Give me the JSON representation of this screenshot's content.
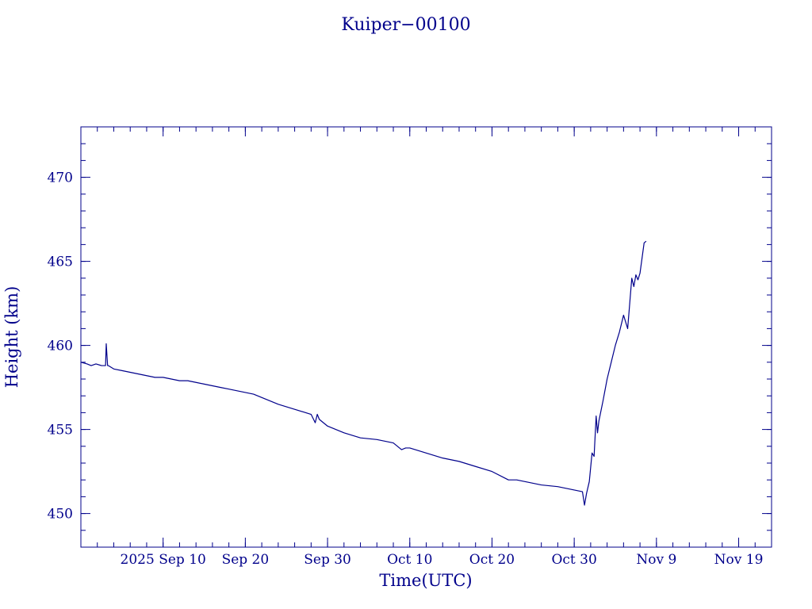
{
  "chart_data": {
    "type": "line",
    "title": "Kuiper−00100",
    "xlabel": "Time(UTC)",
    "ylabel": "Height (km)",
    "color": "#00008b",
    "grid": false,
    "xlim": [
      "2025-08-31",
      "2025-11-23"
    ],
    "ylim": [
      448,
      473
    ],
    "x_ticks": [
      {
        "date": "2025-09-10",
        "label": "2025 Sep 10"
      },
      {
        "date": "2025-09-20",
        "label": "Sep 20"
      },
      {
        "date": "2025-09-30",
        "label": "Sep 30"
      },
      {
        "date": "2025-10-10",
        "label": "Oct 10"
      },
      {
        "date": "2025-10-20",
        "label": "Oct 20"
      },
      {
        "date": "2025-10-30",
        "label": "Oct 30"
      },
      {
        "date": "2025-11-09",
        "label": "Nov  9"
      },
      {
        "date": "2025-11-19",
        "label": "Nov 19"
      }
    ],
    "y_ticks": [
      450,
      455,
      460,
      465,
      470
    ],
    "series": [
      {
        "x": [
          "2025-08-31T00:00",
          "2025-08-31T18:00",
          "2025-09-01T06:00",
          "2025-09-01T20:00",
          "2025-09-02T12:00",
          "2025-09-03T00:00",
          "2025-09-03T02:00",
          "2025-09-03T06:00",
          "2025-09-03T08:00",
          "2025-09-04",
          "2025-09-05",
          "2025-09-06",
          "2025-09-07",
          "2025-09-08",
          "2025-09-09",
          "2025-09-10",
          "2025-09-11",
          "2025-09-12",
          "2025-09-13",
          "2025-09-14",
          "2025-09-15",
          "2025-09-16",
          "2025-09-17",
          "2025-09-18",
          "2025-09-19",
          "2025-09-20",
          "2025-09-21",
          "2025-09-22",
          "2025-09-24",
          "2025-09-26",
          "2025-09-28",
          "2025-09-28T12:00",
          "2025-09-28T18:00",
          "2025-09-29T00:00",
          "2025-09-30",
          "2025-10-01",
          "2025-10-02",
          "2025-10-04",
          "2025-10-06",
          "2025-10-08",
          "2025-10-09",
          "2025-10-09T12:00",
          "2025-10-10",
          "2025-10-12",
          "2025-10-14",
          "2025-10-16",
          "2025-10-18",
          "2025-10-20",
          "2025-10-22",
          "2025-10-23",
          "2025-10-24",
          "2025-10-26",
          "2025-10-28",
          "2025-10-30",
          "2025-10-31T00:00",
          "2025-10-31T06:00",
          "2025-10-31T12:00",
          "2025-10-31T20:00",
          "2025-11-01T04:00",
          "2025-11-01T10:00",
          "2025-11-01T16:00",
          "2025-11-01T20:00",
          "2025-11-02T00:00",
          "2025-11-02T12:00",
          "2025-11-03T00:00",
          "2025-11-03T12:00",
          "2025-11-04",
          "2025-11-04T12:00",
          "2025-11-05",
          "2025-11-05T12:00",
          "2025-11-06T00:00",
          "2025-11-06T06:00",
          "2025-11-06T12:00",
          "2025-11-06T18:00",
          "2025-11-07T00:00",
          "2025-11-07T06:00",
          "2025-11-07T12:00",
          "2025-11-07T18:00"
        ],
        "y": [
          459.0,
          458.9,
          458.8,
          458.9,
          458.8,
          458.8,
          460.1,
          458.8,
          458.8,
          458.6,
          458.5,
          458.4,
          458.3,
          458.2,
          458.1,
          458.1,
          458.0,
          457.9,
          457.9,
          457.8,
          457.7,
          457.6,
          457.5,
          457.4,
          457.3,
          457.2,
          457.1,
          456.9,
          456.5,
          456.2,
          455.9,
          455.4,
          455.9,
          455.6,
          455.2,
          455.0,
          454.8,
          454.5,
          454.4,
          454.2,
          453.8,
          453.9,
          453.9,
          453.6,
          453.3,
          453.1,
          452.8,
          452.5,
          452.0,
          452.0,
          451.9,
          451.7,
          451.6,
          451.4,
          451.3,
          450.5,
          451.2,
          451.9,
          453.6,
          453.4,
          455.8,
          454.8,
          455.5,
          456.7,
          458.0,
          459.0,
          460.0,
          460.8,
          461.8,
          461.0,
          464.0,
          463.5,
          464.2,
          463.9,
          464.3,
          465.2,
          466.1,
          466.2
        ]
      }
    ]
  }
}
